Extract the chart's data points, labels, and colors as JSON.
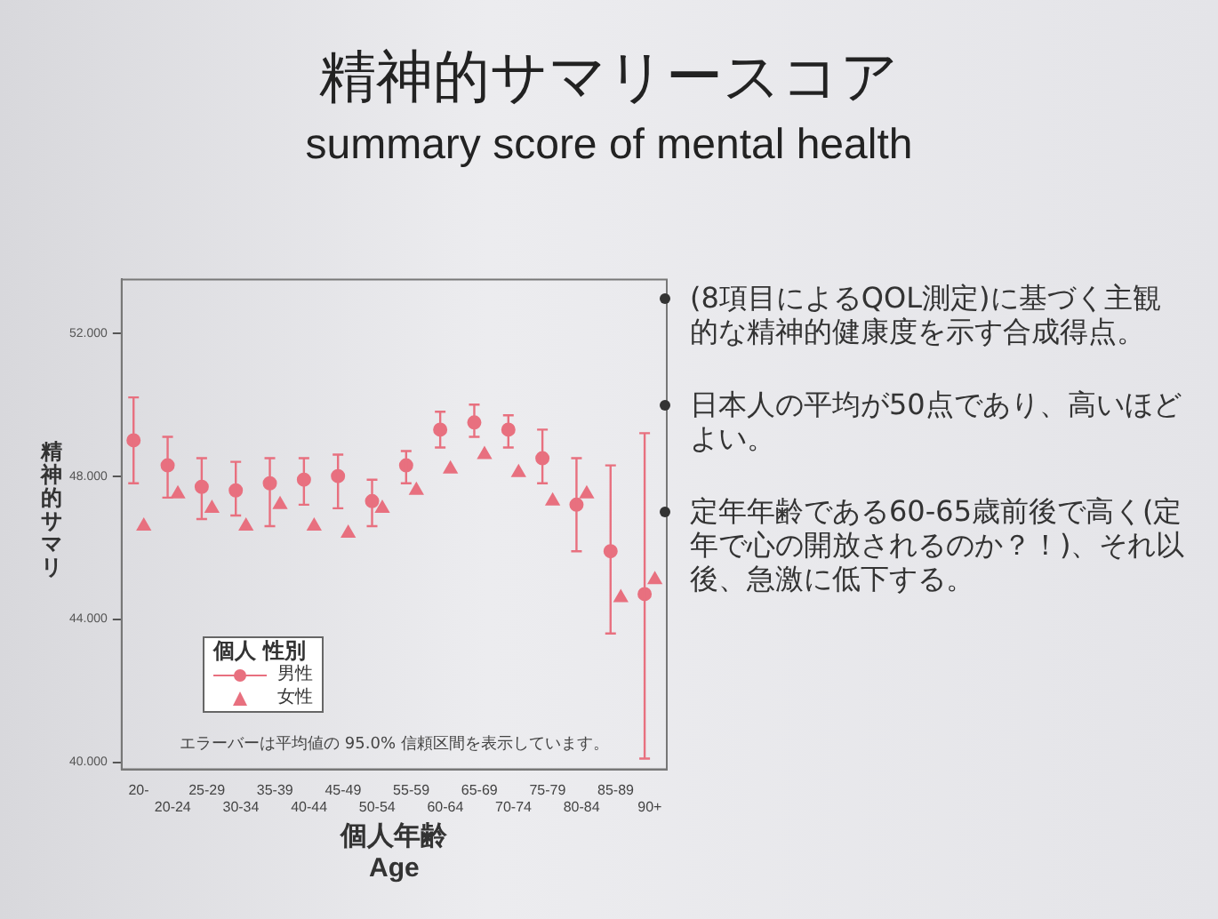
{
  "chart_data": {
    "type": "scatter",
    "title": "精神的サマリースコア",
    "subtitle": "summary score of mental health",
    "xlabel": "個人年齢\nAge",
    "ylabel": "精神的サマリ",
    "legend_title": "個人 性別",
    "categories": [
      "20-",
      "20-24",
      "25-29",
      "30-34",
      "35-39",
      "40-44",
      "45-49",
      "50-54",
      "55-59",
      "60-64",
      "65-69",
      "70-74",
      "75-79",
      "80-84",
      "85-89",
      "90+"
    ],
    "series": [
      {
        "name": "男性",
        "color": "#e8707f",
        "marker": "circle",
        "values": [
          49.0,
          48.3,
          47.7,
          47.6,
          47.8,
          47.9,
          48.0,
          47.3,
          48.3,
          49.3,
          49.5,
          49.3,
          48.5,
          47.2,
          45.9,
          44.7
        ],
        "errors": [
          [
            47.8,
            50.2
          ],
          [
            47.4,
            49.1
          ],
          [
            46.8,
            48.5
          ],
          [
            46.9,
            48.4
          ],
          [
            46.6,
            48.5
          ],
          [
            47.2,
            48.5
          ],
          [
            47.1,
            48.6
          ],
          [
            46.6,
            47.9
          ],
          [
            47.8,
            48.7
          ],
          [
            48.8,
            49.8
          ],
          [
            49.1,
            50.0
          ],
          [
            48.8,
            49.7
          ],
          [
            47.8,
            49.3
          ],
          [
            45.9,
            48.5
          ],
          [
            43.6,
            48.3
          ],
          [
            40.1,
            49.2
          ]
        ]
      },
      {
        "name": "女性",
        "color": "#e8707f",
        "marker": "triangle",
        "values": [
          46.6,
          47.5,
          47.1,
          46.6,
          47.2,
          46.6,
          46.4,
          47.1,
          47.6,
          48.2,
          48.6,
          48.1,
          47.3,
          47.5,
          44.6,
          45.1
        ]
      }
    ],
    "ylim": [
      39.8,
      53.5
    ],
    "yticks": [
      {
        "value": 40,
        "label": "40.000"
      },
      {
        "value": 44,
        "label": "44.000"
      },
      {
        "value": 48,
        "label": "48.000"
      },
      {
        "value": 52,
        "label": "52.000"
      }
    ],
    "grid": false,
    "legend": "bottom left",
    "annotations": [
      "エラーバーは平均値の 95.0% 信頼区間を表示しています。",
      "(8項目によるQOL測定)に基づく主観的な精神的健康度を示す合成得点。",
      "日本人の平均が50点であり、高いほどよい。",
      "定年年齢である60-65歳前後で高く(定年で心の開放されるのか？！)、それ以後、急激に低下する。"
    ]
  }
}
